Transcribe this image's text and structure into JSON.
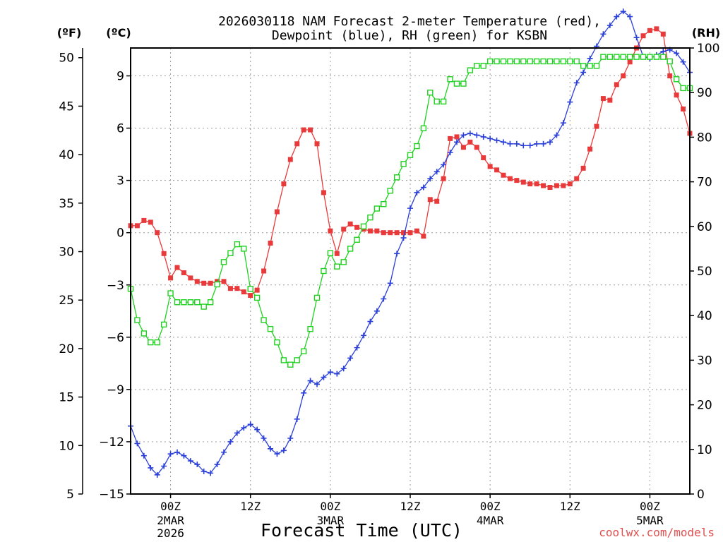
{
  "chart_data": {
    "type": "line",
    "title_line1": "2026030118 NAM Forecast 2-meter Temperature (red),",
    "title_line2": "Dewpoint (blue), RH (green) for KSBN",
    "xlabel": "Forecast Time (UTC)",
    "watermark": "coolwx.com/models",
    "unit_left_outer": "(ºF)",
    "unit_left_inner": "(ºC)",
    "unit_right": "(RH)",
    "x_unit": "forecast hour",
    "xlim": [
      0,
      84
    ],
    "ylim_c": [
      -15,
      10.6
    ],
    "ylim_f": [
      5,
      51
    ],
    "ylim_rh": [
      0,
      100
    ],
    "x_ticks": [
      {
        "hour": 6,
        "label": "00Z",
        "sub1": "2MAR",
        "sub2": "2026"
      },
      {
        "hour": 18,
        "label": "12Z",
        "sub1": "",
        "sub2": ""
      },
      {
        "hour": 30,
        "label": "00Z",
        "sub1": "3MAR",
        "sub2": ""
      },
      {
        "hour": 42,
        "label": "12Z",
        "sub1": "",
        "sub2": ""
      },
      {
        "hour": 54,
        "label": "00Z",
        "sub1": "4MAR",
        "sub2": ""
      },
      {
        "hour": 66,
        "label": "12Z",
        "sub1": "",
        "sub2": ""
      },
      {
        "hour": 78,
        "label": "00Z",
        "sub1": "5MAR",
        "sub2": ""
      }
    ],
    "celsius_ticks": [
      {
        "v": 9,
        "label": "9"
      },
      {
        "v": 6,
        "label": "6"
      },
      {
        "v": 3,
        "label": "3"
      },
      {
        "v": 0,
        "label": "0"
      },
      {
        "v": -3,
        "label": "−3"
      },
      {
        "v": -6,
        "label": "−6"
      },
      {
        "v": -9,
        "label": "−9"
      },
      {
        "v": -12,
        "label": "−12"
      },
      {
        "v": -15,
        "label": "−15"
      }
    ],
    "fahrenheit_ticks": [
      {
        "v": 50,
        "label": "50"
      },
      {
        "v": 45,
        "label": "45"
      },
      {
        "v": 40,
        "label": "40"
      },
      {
        "v": 35,
        "label": "35"
      },
      {
        "v": 30,
        "label": "30"
      },
      {
        "v": 25,
        "label": "25"
      },
      {
        "v": 20,
        "label": "20"
      },
      {
        "v": 15,
        "label": "15"
      },
      {
        "v": 10,
        "label": "10"
      },
      {
        "v": 5,
        "label": "5"
      }
    ],
    "rh_ticks": [
      {
        "v": 100,
        "label": "100"
      },
      {
        "v": 90,
        "label": "90"
      },
      {
        "v": 80,
        "label": "80"
      },
      {
        "v": 70,
        "label": "70"
      },
      {
        "v": 60,
        "label": "60"
      },
      {
        "v": 50,
        "label": "50"
      },
      {
        "v": 40,
        "label": "40"
      },
      {
        "v": 30,
        "label": "30"
      },
      {
        "v": 20,
        "label": "20"
      },
      {
        "v": 10,
        "label": "10"
      },
      {
        "v": 0,
        "label": "0"
      }
    ],
    "series": [
      {
        "name": "2-meter Temperature",
        "axis": "celsius",
        "color": "#e83a3a",
        "marker": "filled-square",
        "points": [
          [
            0,
            0.4
          ],
          [
            1,
            0.4
          ],
          [
            2,
            0.7
          ],
          [
            3,
            0.6
          ],
          [
            4,
            0
          ],
          [
            5,
            -1.2
          ],
          [
            6,
            -2.6
          ],
          [
            7,
            -2
          ],
          [
            8,
            -2.3
          ],
          [
            9,
            -2.6
          ],
          [
            10,
            -2.8
          ],
          [
            11,
            -2.9
          ],
          [
            12,
            -2.9
          ],
          [
            13,
            -2.8
          ],
          [
            14,
            -2.8
          ],
          [
            15,
            -3.2
          ],
          [
            16,
            -3.2
          ],
          [
            17,
            -3.4
          ],
          [
            18,
            -3.6
          ],
          [
            19,
            -3.3
          ],
          [
            20,
            -2.2
          ],
          [
            21,
            -0.6
          ],
          [
            22,
            1.2
          ],
          [
            23,
            2.8
          ],
          [
            24,
            4.2
          ],
          [
            25,
            5.1
          ],
          [
            26,
            5.9
          ],
          [
            27,
            5.9
          ],
          [
            28,
            5.1
          ],
          [
            29,
            2.3
          ],
          [
            30,
            0.1
          ],
          [
            31,
            -1.2
          ],
          [
            32,
            0.2
          ],
          [
            33,
            0.5
          ],
          [
            34,
            0.3
          ],
          [
            35,
            0.2
          ],
          [
            36,
            0.1
          ],
          [
            37,
            0.1
          ],
          [
            38,
            0
          ],
          [
            39,
            0
          ],
          [
            40,
            0
          ],
          [
            41,
            0
          ],
          [
            42,
            0
          ],
          [
            43,
            0.1
          ],
          [
            44,
            -0.2
          ],
          [
            45,
            1.9
          ],
          [
            46,
            1.8
          ],
          [
            47,
            3.1
          ],
          [
            48,
            5.4
          ],
          [
            49,
            5.5
          ],
          [
            50,
            4.9
          ],
          [
            51,
            5.2
          ],
          [
            52,
            4.9
          ],
          [
            53,
            4.3
          ],
          [
            54,
            3.8
          ],
          [
            55,
            3.6
          ],
          [
            56,
            3.3
          ],
          [
            57,
            3.1
          ],
          [
            58,
            3
          ],
          [
            59,
            2.9
          ],
          [
            60,
            2.8
          ],
          [
            61,
            2.8
          ],
          [
            62,
            2.7
          ],
          [
            63,
            2.6
          ],
          [
            64,
            2.7
          ],
          [
            65,
            2.7
          ],
          [
            66,
            2.8
          ],
          [
            67,
            3.1
          ],
          [
            68,
            3.7
          ],
          [
            69,
            4.8
          ],
          [
            70,
            6.1
          ],
          [
            71,
            7.7
          ],
          [
            72,
            7.6
          ],
          [
            73,
            8.5
          ],
          [
            74,
            9
          ],
          [
            75,
            9.8
          ],
          [
            76,
            10.6
          ],
          [
            77,
            11.3
          ],
          [
            78,
            11.6
          ],
          [
            79,
            11.7
          ],
          [
            80,
            11.4
          ],
          [
            81,
            9
          ],
          [
            82,
            7.9
          ],
          [
            83,
            7.1
          ],
          [
            84,
            5.7
          ]
        ]
      },
      {
        "name": "Dewpoint",
        "axis": "celsius",
        "color": "#2a3fd8",
        "marker": "plus",
        "points": [
          [
            0,
            -11.1
          ],
          [
            1,
            -12.1
          ],
          [
            2,
            -12.8
          ],
          [
            3,
            -13.5
          ],
          [
            4,
            -13.9
          ],
          [
            5,
            -13.4
          ],
          [
            6,
            -12.7
          ],
          [
            7,
            -12.6
          ],
          [
            8,
            -12.8
          ],
          [
            9,
            -13.1
          ],
          [
            10,
            -13.3
          ],
          [
            11,
            -13.7
          ],
          [
            12,
            -13.8
          ],
          [
            13,
            -13.3
          ],
          [
            14,
            -12.6
          ],
          [
            15,
            -12
          ],
          [
            16,
            -11.5
          ],
          [
            17,
            -11.2
          ],
          [
            18,
            -11
          ],
          [
            19,
            -11.3
          ],
          [
            20,
            -11.8
          ],
          [
            21,
            -12.4
          ],
          [
            22,
            -12.7
          ],
          [
            23,
            -12.5
          ],
          [
            24,
            -11.8
          ],
          [
            25,
            -10.7
          ],
          [
            26,
            -9.2
          ],
          [
            27,
            -8.5
          ],
          [
            28,
            -8.7
          ],
          [
            29,
            -8.3
          ],
          [
            30,
            -8
          ],
          [
            31,
            -8.1
          ],
          [
            32,
            -7.8
          ],
          [
            33,
            -7.2
          ],
          [
            34,
            -6.6
          ],
          [
            35,
            -5.9
          ],
          [
            36,
            -5.1
          ],
          [
            37,
            -4.5
          ],
          [
            38,
            -3.8
          ],
          [
            39,
            -2.9
          ],
          [
            40,
            -1.2
          ],
          [
            41,
            -0.3
          ],
          [
            42,
            1.4
          ],
          [
            43,
            2.3
          ],
          [
            44,
            2.6
          ],
          [
            45,
            3.1
          ],
          [
            46,
            3.5
          ],
          [
            47,
            3.9
          ],
          [
            48,
            4.6
          ],
          [
            49,
            5.2
          ],
          [
            50,
            5.6
          ],
          [
            51,
            5.7
          ],
          [
            52,
            5.6
          ],
          [
            53,
            5.5
          ],
          [
            54,
            5.4
          ],
          [
            55,
            5.3
          ],
          [
            56,
            5.2
          ],
          [
            57,
            5.1
          ],
          [
            58,
            5.1
          ],
          [
            59,
            5
          ],
          [
            60,
            5
          ],
          [
            61,
            5.1
          ],
          [
            62,
            5.1
          ],
          [
            63,
            5.2
          ],
          [
            64,
            5.6
          ],
          [
            65,
            6.3
          ],
          [
            66,
            7.5
          ],
          [
            67,
            8.6
          ],
          [
            68,
            9.2
          ],
          [
            69,
            10
          ],
          [
            70,
            10.7
          ],
          [
            71,
            11.4
          ],
          [
            72,
            11.9
          ],
          [
            73,
            12.4
          ],
          [
            74,
            12.7
          ],
          [
            75,
            12.4
          ],
          [
            76,
            11.2
          ],
          [
            77,
            10.1
          ],
          [
            78,
            10
          ],
          [
            79,
            10.2
          ],
          [
            80,
            10.4
          ],
          [
            81,
            10.5
          ],
          [
            82,
            10.3
          ],
          [
            83,
            9.8
          ],
          [
            84,
            9.2
          ]
        ]
      },
      {
        "name": "RH",
        "axis": "rh",
        "color": "#1fd11f",
        "marker": "open-square",
        "points": [
          [
            0,
            46
          ],
          [
            1,
            39
          ],
          [
            2,
            36
          ],
          [
            3,
            34
          ],
          [
            4,
            34
          ],
          [
            5,
            38
          ],
          [
            6,
            45
          ],
          [
            7,
            43
          ],
          [
            8,
            43
          ],
          [
            9,
            43
          ],
          [
            10,
            43
          ],
          [
            11,
            42
          ],
          [
            12,
            43
          ],
          [
            13,
            47
          ],
          [
            14,
            52
          ],
          [
            15,
            54
          ],
          [
            16,
            56
          ],
          [
            17,
            55
          ],
          [
            18,
            46
          ],
          [
            19,
            44
          ],
          [
            20,
            39
          ],
          [
            21,
            37
          ],
          [
            22,
            34
          ],
          [
            23,
            30
          ],
          [
            24,
            29
          ],
          [
            25,
            30
          ],
          [
            26,
            32
          ],
          [
            27,
            37
          ],
          [
            28,
            44
          ],
          [
            29,
            50
          ],
          [
            30,
            54
          ],
          [
            31,
            51
          ],
          [
            32,
            52
          ],
          [
            33,
            55
          ],
          [
            34,
            57
          ],
          [
            35,
            60
          ],
          [
            36,
            62
          ],
          [
            37,
            64
          ],
          [
            38,
            65
          ],
          [
            39,
            68
          ],
          [
            40,
            71
          ],
          [
            41,
            74
          ],
          [
            42,
            76
          ],
          [
            43,
            78
          ],
          [
            44,
            82
          ],
          [
            45,
            90
          ],
          [
            46,
            88
          ],
          [
            47,
            88
          ],
          [
            48,
            93
          ],
          [
            49,
            92
          ],
          [
            50,
            92
          ],
          [
            51,
            95
          ],
          [
            52,
            96
          ],
          [
            53,
            96
          ],
          [
            54,
            97
          ],
          [
            55,
            97
          ],
          [
            56,
            97
          ],
          [
            57,
            97
          ],
          [
            58,
            97
          ],
          [
            59,
            97
          ],
          [
            60,
            97
          ],
          [
            61,
            97
          ],
          [
            62,
            97
          ],
          [
            63,
            97
          ],
          [
            64,
            97
          ],
          [
            65,
            97
          ],
          [
            66,
            97
          ],
          [
            67,
            97
          ],
          [
            68,
            96
          ],
          [
            69,
            96
          ],
          [
            70,
            96
          ],
          [
            71,
            98
          ],
          [
            72,
            98
          ],
          [
            73,
            98
          ],
          [
            74,
            98
          ],
          [
            75,
            98
          ],
          [
            76,
            98
          ],
          [
            77,
            98
          ],
          [
            78,
            98
          ],
          [
            79,
            98
          ],
          [
            80,
            98
          ],
          [
            81,
            97
          ],
          [
            82,
            93
          ],
          [
            83,
            91
          ],
          [
            84,
            91
          ]
        ]
      }
    ]
  }
}
